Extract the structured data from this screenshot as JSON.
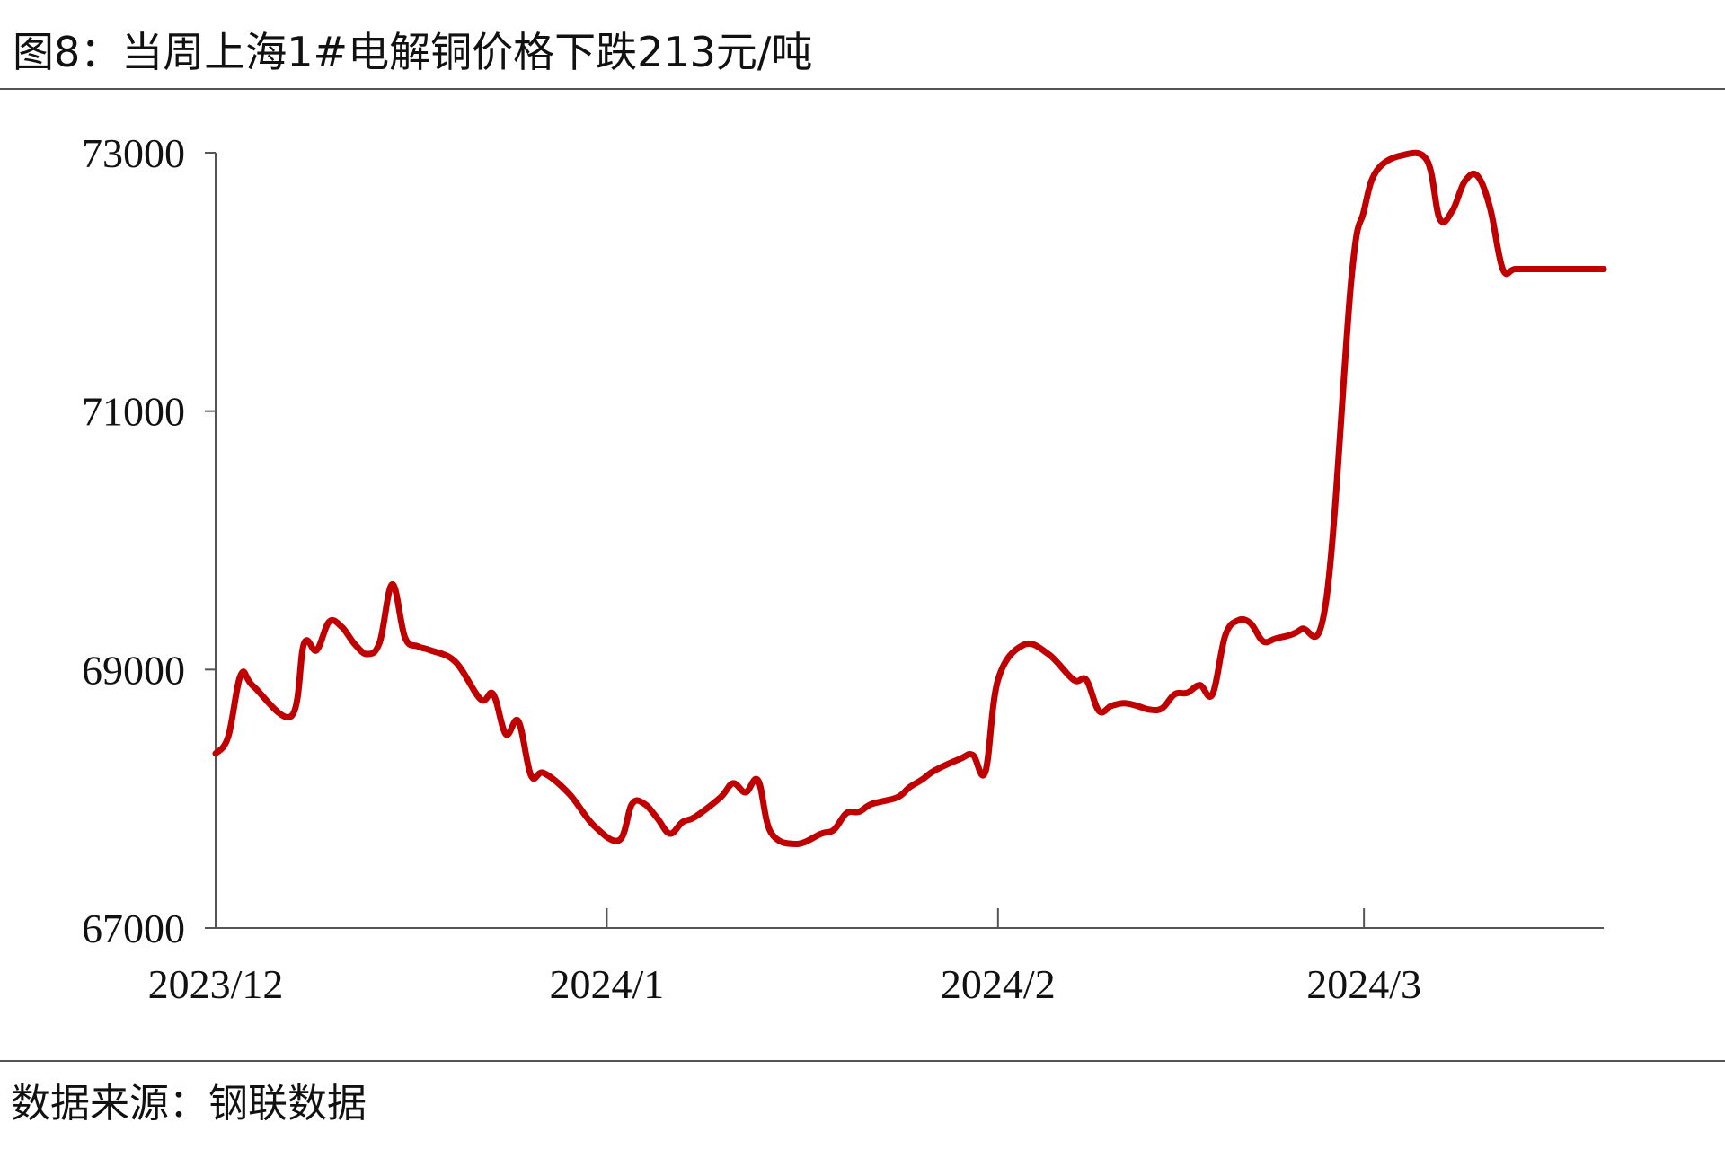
{
  "title": "图8：当周上海1#电解铜价格下跌213元/吨",
  "source": "数据来源：钢联数据",
  "colors": {
    "line": "#c00000",
    "axis": "#555555"
  },
  "chart_data": {
    "type": "line",
    "title": "图8：当周上海1#电解铜价格下跌213元/吨",
    "xlabel": "",
    "ylabel": "",
    "ylim": [
      67000,
      73000
    ],
    "y_ticks": [
      67000,
      69000,
      71000,
      73000
    ],
    "y_tick_labels": [
      "67000",
      "69000",
      "71000",
      "73000"
    ],
    "x_range": [
      "2023-12-01",
      "2024-03-20"
    ],
    "x_ticks": [
      "2023-12-01",
      "2024-01-01",
      "2024-02-01",
      "2024-03-01"
    ],
    "x_tick_labels": [
      "2023/12",
      "2024/1",
      "2024/2",
      "2024/3"
    ],
    "grid": false,
    "legend": "none",
    "series": [
      {
        "x": [
          "2023-12-01",
          "2023-12-02",
          "2023-12-03",
          "2023-12-04",
          "2023-12-07",
          "2023-12-08",
          "2023-12-09",
          "2023-12-10",
          "2023-12-11",
          "2023-12-12",
          "2023-12-13",
          "2023-12-14",
          "2023-12-15",
          "2023-12-16",
          "2023-12-17",
          "2023-12-18",
          "2023-12-20",
          "2023-12-22",
          "2023-12-23",
          "2023-12-24",
          "2023-12-25",
          "2023-12-26",
          "2023-12-27",
          "2023-12-29",
          "2023-12-31",
          "2024-01-02",
          "2024-01-03",
          "2024-01-04",
          "2024-01-05",
          "2024-01-06",
          "2024-01-07",
          "2024-01-08",
          "2024-01-10",
          "2024-01-11",
          "2024-01-12",
          "2024-01-13",
          "2024-01-14",
          "2024-01-16",
          "2024-01-18",
          "2024-01-19",
          "2024-01-20",
          "2024-01-21",
          "2024-01-22",
          "2024-01-24",
          "2024-01-25",
          "2024-01-26",
          "2024-01-27",
          "2024-01-29",
          "2024-01-30",
          "2024-01-31",
          "2024-02-01",
          "2024-02-03",
          "2024-02-05",
          "2024-02-07",
          "2024-02-08",
          "2024-02-09",
          "2024-02-10",
          "2024-02-11",
          "2024-02-12",
          "2024-02-13",
          "2024-02-14",
          "2024-02-15",
          "2024-02-16",
          "2024-02-17",
          "2024-02-18",
          "2024-02-19",
          "2024-02-20",
          "2024-02-21",
          "2024-02-22",
          "2024-02-23",
          "2024-02-25",
          "2024-02-27",
          "2024-02-29",
          "2024-03-01",
          "2024-03-02",
          "2024-03-04",
          "2024-03-06",
          "2024-03-07",
          "2024-03-08",
          "2024-03-09",
          "2024-03-10",
          "2024-03-11",
          "2024-03-12",
          "2024-03-13",
          "2024-03-15",
          "2024-03-18",
          "2024-03-20"
        ],
        "values": [
          68350,
          68480,
          68960,
          68870,
          68640,
          69200,
          69150,
          69370,
          69330,
          69200,
          69120,
          69210,
          69660,
          69250,
          69180,
          69150,
          69060,
          68770,
          68810,
          68500,
          68600,
          68180,
          68200,
          68040,
          67790,
          67680,
          67960,
          67960,
          67850,
          67730,
          67820,
          67860,
          68010,
          68120,
          68050,
          68140,
          67740,
          67650,
          67730,
          67760,
          67890,
          67900,
          67960,
          68010,
          68090,
          68150,
          68220,
          68310,
          68340,
          68210,
          68920,
          69190,
          69120,
          68920,
          68920,
          68680,
          68720,
          68740,
          68720,
          68690,
          68700,
          68810,
          68820,
          68880,
          68810,
          69260,
          69380,
          69360,
          69220,
          69240,
          69310,
          69530,
          72020,
          72550,
          72860,
          72980,
          72940,
          72490,
          72550,
          72780,
          72820,
          72570,
          72100,
          72100,
          72100,
          72100,
          72100
        ]
      }
    ]
  }
}
